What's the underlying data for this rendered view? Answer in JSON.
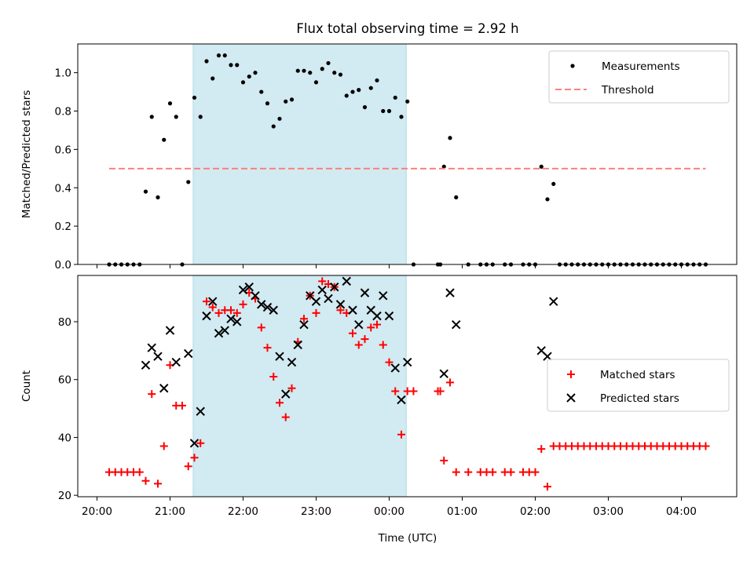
{
  "title": "Flux total observing time = 2.92 h",
  "colors": {
    "measurement": "#000000",
    "threshold": "#ff7f7f",
    "matched": "#ff0000",
    "predicted": "#000000",
    "span": "#add8e6"
  },
  "chart_data": [
    {
      "type": "scatter",
      "panel": "top",
      "ylabel": "Matched/Predicted stars",
      "ylim": [
        0,
        1.15
      ],
      "yticks": [
        "0.0",
        "0.2",
        "0.4",
        "0.6",
        "0.8",
        "1.0"
      ],
      "grid": false,
      "legend_position": "top-right",
      "highlight_span": [
        "21:19",
        "00:14"
      ],
      "series": [
        {
          "name": "Measurements",
          "style": "dot",
          "points": [
            [
              "20:10",
              0
            ],
            [
              "20:15",
              0
            ],
            [
              "20:20",
              0
            ],
            [
              "20:25",
              0
            ],
            [
              "20:30",
              0
            ],
            [
              "20:35",
              0
            ],
            [
              "20:40",
              0.38
            ],
            [
              "20:45",
              0.77
            ],
            [
              "20:50",
              0.35
            ],
            [
              "20:55",
              0.65
            ],
            [
              "21:00",
              0.84
            ],
            [
              "21:05",
              0.77
            ],
            [
              "21:10",
              0
            ],
            [
              "21:15",
              0.43
            ],
            [
              "21:20",
              0.87
            ],
            [
              "21:25",
              0.77
            ],
            [
              "21:30",
              1.06
            ],
            [
              "21:35",
              0.97
            ],
            [
              "21:40",
              1.09
            ],
            [
              "21:45",
              1.09
            ],
            [
              "21:50",
              1.04
            ],
            [
              "21:55",
              1.04
            ],
            [
              "22:00",
              0.95
            ],
            [
              "22:05",
              0.98
            ],
            [
              "22:10",
              1.0
            ],
            [
              "22:15",
              0.9
            ],
            [
              "22:20",
              0.84
            ],
            [
              "22:25",
              0.72
            ],
            [
              "22:30",
              0.76
            ],
            [
              "22:35",
              0.85
            ],
            [
              "22:40",
              0.86
            ],
            [
              "22:45",
              1.01
            ],
            [
              "22:50",
              1.01
            ],
            [
              "22:55",
              1.0
            ],
            [
              "23:00",
              0.95
            ],
            [
              "23:05",
              1.02
            ],
            [
              "23:10",
              1.05
            ],
            [
              "23:15",
              1.0
            ],
            [
              "23:20",
              0.99
            ],
            [
              "23:25",
              0.88
            ],
            [
              "23:30",
              0.9
            ],
            [
              "23:35",
              0.91
            ],
            [
              "23:40",
              0.82
            ],
            [
              "23:45",
              0.92
            ],
            [
              "23:50",
              0.96
            ],
            [
              "23:55",
              0.8
            ],
            [
              "00:00",
              0.8
            ],
            [
              "00:05",
              0.87
            ],
            [
              "00:10",
              0.77
            ],
            [
              "00:15",
              0.85
            ],
            [
              "00:20",
              0
            ],
            [
              "00:40",
              0
            ],
            [
              "00:42",
              0
            ],
            [
              "00:45",
              0.51
            ],
            [
              "00:50",
              0.66
            ],
            [
              "00:55",
              0.35
            ],
            [
              "01:05",
              0
            ],
            [
              "01:15",
              0
            ],
            [
              "01:20",
              0
            ],
            [
              "01:25",
              0
            ],
            [
              "01:35",
              0
            ],
            [
              "01:40",
              0
            ],
            [
              "01:50",
              0
            ],
            [
              "01:55",
              0
            ],
            [
              "02:00",
              0
            ],
            [
              "02:05",
              0.51
            ],
            [
              "02:10",
              0.34
            ],
            [
              "02:15",
              0.42
            ],
            [
              "02:20",
              0
            ],
            [
              "02:25",
              0
            ],
            [
              "02:30",
              0
            ],
            [
              "02:35",
              0
            ],
            [
              "02:40",
              0
            ],
            [
              "02:45",
              0
            ],
            [
              "02:50",
              0
            ],
            [
              "02:55",
              0
            ],
            [
              "03:00",
              0
            ],
            [
              "03:05",
              0
            ],
            [
              "03:10",
              0
            ],
            [
              "03:15",
              0
            ],
            [
              "03:20",
              0
            ],
            [
              "03:25",
              0
            ],
            [
              "03:30",
              0
            ],
            [
              "03:35",
              0
            ],
            [
              "03:40",
              0
            ],
            [
              "03:45",
              0
            ],
            [
              "03:50",
              0
            ],
            [
              "03:55",
              0
            ],
            [
              "04:00",
              0
            ],
            [
              "04:05",
              0
            ],
            [
              "04:10",
              0
            ],
            [
              "04:15",
              0
            ],
            [
              "04:20",
              0
            ]
          ]
        },
        {
          "name": "Threshold",
          "style": "dashed",
          "points": [
            [
              "20:10",
              0.5
            ],
            [
              "04:20",
              0.5
            ]
          ]
        }
      ]
    },
    {
      "type": "scatter",
      "panel": "bottom",
      "ylabel": "Count",
      "xlabel": "Time (UTC)",
      "ylim": [
        19.5,
        96
      ],
      "yticks": [
        "20",
        "40",
        "60",
        "80"
      ],
      "xticks": [
        "20:00",
        "21:00",
        "22:00",
        "23:00",
        "00:00",
        "01:00",
        "02:00",
        "03:00",
        "04:00"
      ],
      "grid": false,
      "legend_position": "center-right",
      "highlight_span": [
        "21:19",
        "00:14"
      ],
      "series": [
        {
          "name": "Matched stars",
          "style": "plus",
          "points": [
            [
              "20:10",
              28
            ],
            [
              "20:15",
              28
            ],
            [
              "20:20",
              28
            ],
            [
              "20:25",
              28
            ],
            [
              "20:30",
              28
            ],
            [
              "20:35",
              28
            ],
            [
              "20:40",
              25
            ],
            [
              "20:45",
              55
            ],
            [
              "20:50",
              24
            ],
            [
              "20:55",
              37
            ],
            [
              "21:00",
              65
            ],
            [
              "21:05",
              51
            ],
            [
              "21:10",
              51
            ],
            [
              "21:15",
              30
            ],
            [
              "21:20",
              33
            ],
            [
              "21:25",
              38
            ],
            [
              "21:30",
              87
            ],
            [
              "21:35",
              85
            ],
            [
              "21:40",
              83
            ],
            [
              "21:45",
              84
            ],
            [
              "21:50",
              84
            ],
            [
              "21:55",
              83
            ],
            [
              "22:00",
              86
            ],
            [
              "22:05",
              90
            ],
            [
              "22:10",
              88
            ],
            [
              "22:15",
              78
            ],
            [
              "22:20",
              71
            ],
            [
              "22:25",
              61
            ],
            [
              "22:30",
              52
            ],
            [
              "22:35",
              47
            ],
            [
              "22:40",
              57
            ],
            [
              "22:45",
              73
            ],
            [
              "22:50",
              81
            ],
            [
              "22:55",
              89
            ],
            [
              "23:00",
              83
            ],
            [
              "23:05",
              94
            ],
            [
              "23:10",
              93
            ],
            [
              "23:15",
              92
            ],
            [
              "23:20",
              84
            ],
            [
              "23:25",
              83
            ],
            [
              "23:30",
              76
            ],
            [
              "23:35",
              72
            ],
            [
              "23:40",
              74
            ],
            [
              "23:45",
              78
            ],
            [
              "23:50",
              79
            ],
            [
              "23:55",
              72
            ],
            [
              "00:00",
              66
            ],
            [
              "00:05",
              56
            ],
            [
              "00:10",
              41
            ],
            [
              "00:15",
              56
            ],
            [
              "00:20",
              56
            ],
            [
              "00:40",
              56
            ],
            [
              "00:42",
              56
            ],
            [
              "00:45",
              32
            ],
            [
              "00:50",
              59
            ],
            [
              "00:55",
              28
            ],
            [
              "01:05",
              28
            ],
            [
              "01:15",
              28
            ],
            [
              "01:20",
              28
            ],
            [
              "01:25",
              28
            ],
            [
              "01:35",
              28
            ],
            [
              "01:40",
              28
            ],
            [
              "01:50",
              28
            ],
            [
              "01:55",
              28
            ],
            [
              "02:00",
              28
            ],
            [
              "02:05",
              36
            ],
            [
              "02:10",
              23
            ],
            [
              "02:15",
              37
            ],
            [
              "02:20",
              37
            ],
            [
              "02:25",
              37
            ],
            [
              "02:30",
              37
            ],
            [
              "02:35",
              37
            ],
            [
              "02:40",
              37
            ],
            [
              "02:45",
              37
            ],
            [
              "02:50",
              37
            ],
            [
              "02:55",
              37
            ],
            [
              "03:00",
              37
            ],
            [
              "03:05",
              37
            ],
            [
              "03:10",
              37
            ],
            [
              "03:15",
              37
            ],
            [
              "03:20",
              37
            ],
            [
              "03:25",
              37
            ],
            [
              "03:30",
              37
            ],
            [
              "03:35",
              37
            ],
            [
              "03:40",
              37
            ],
            [
              "03:45",
              37
            ],
            [
              "03:50",
              37
            ],
            [
              "03:55",
              37
            ],
            [
              "04:00",
              37
            ],
            [
              "04:05",
              37
            ],
            [
              "04:10",
              37
            ],
            [
              "04:15",
              37
            ],
            [
              "04:20",
              37
            ]
          ]
        },
        {
          "name": "Predicted stars",
          "style": "x",
          "points": [
            [
              "20:40",
              65
            ],
            [
              "20:45",
              71
            ],
            [
              "20:50",
              68
            ],
            [
              "20:55",
              57
            ],
            [
              "21:00",
              77
            ],
            [
              "21:05",
              66
            ],
            [
              "21:15",
              69
            ],
            [
              "21:20",
              38
            ],
            [
              "21:25",
              49
            ],
            [
              "21:30",
              82
            ],
            [
              "21:35",
              87
            ],
            [
              "21:40",
              76
            ],
            [
              "21:45",
              77
            ],
            [
              "21:50",
              81
            ],
            [
              "21:55",
              80
            ],
            [
              "22:00",
              91
            ],
            [
              "22:05",
              92
            ],
            [
              "22:10",
              89
            ],
            [
              "22:15",
              86
            ],
            [
              "22:20",
              85
            ],
            [
              "22:25",
              84
            ],
            [
              "22:30",
              68
            ],
            [
              "22:35",
              55
            ],
            [
              "22:40",
              66
            ],
            [
              "22:45",
              72
            ],
            [
              "22:50",
              79
            ],
            [
              "22:55",
              89
            ],
            [
              "23:00",
              87
            ],
            [
              "23:05",
              91
            ],
            [
              "23:10",
              88
            ],
            [
              "23:15",
              92
            ],
            [
              "23:20",
              86
            ],
            [
              "23:25",
              94
            ],
            [
              "23:30",
              84
            ],
            [
              "23:35",
              79
            ],
            [
              "23:40",
              90
            ],
            [
              "23:45",
              84
            ],
            [
              "23:50",
              82
            ],
            [
              "23:55",
              89
            ],
            [
              "00:00",
              82
            ],
            [
              "00:05",
              64
            ],
            [
              "00:10",
              53
            ],
            [
              "00:15",
              66
            ],
            [
              "00:45",
              62
            ],
            [
              "00:50",
              90
            ],
            [
              "00:55",
              79
            ],
            [
              "02:05",
              70
            ],
            [
              "02:10",
              68
            ],
            [
              "02:15",
              87
            ]
          ]
        }
      ]
    }
  ]
}
